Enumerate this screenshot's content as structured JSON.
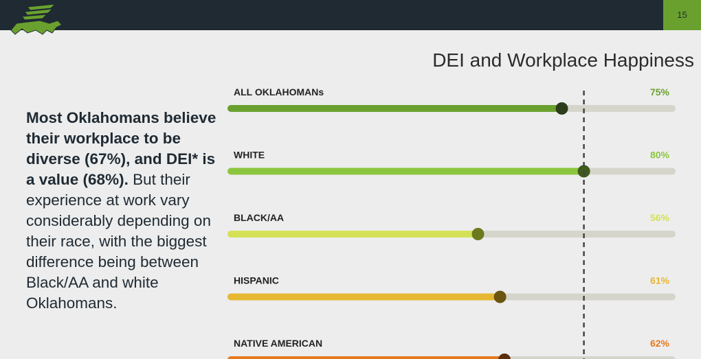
{
  "page_number": "15",
  "title": "DEI and Workplace Happiness",
  "body": {
    "bold": "Most Oklahomans believe their workplace to be diverse (67%), and DEI* is a value (68%).",
    "regular": "But their experience at work vary considerably depending on their race, with the biggest difference being between Black/AA and white Oklahomans."
  },
  "colors": {
    "topbar": "#1f2a33",
    "accent_green": "#6aa12e",
    "track": "#d6d5cc"
  },
  "chart_data": {
    "type": "bar",
    "orientation": "horizontal",
    "categories": [
      "ALL OKLAHOMANs",
      "WHITE",
      "BLACK/AA",
      "HISPANIC",
      "NATIVE AMERICAN"
    ],
    "values": [
      75,
      80,
      56,
      61,
      62
    ],
    "value_labels": [
      "75%",
      "80%",
      "56%",
      "61%",
      "62%"
    ],
    "xlim": [
      0,
      100
    ],
    "reference_line": 80,
    "bar_colors": [
      "#6aa12e",
      "#8cc63f",
      "#d4e157",
      "#e6b832",
      "#e57a1f"
    ],
    "label_colors": [
      "#6aa12e",
      "#8cc63f",
      "#d4e157",
      "#e6b832",
      "#e57a1f"
    ],
    "dot_colors": [
      "#2b3d1a",
      "#3e5a1c",
      "#6b7a1e",
      "#6b5510",
      "#5a2e0e"
    ]
  }
}
